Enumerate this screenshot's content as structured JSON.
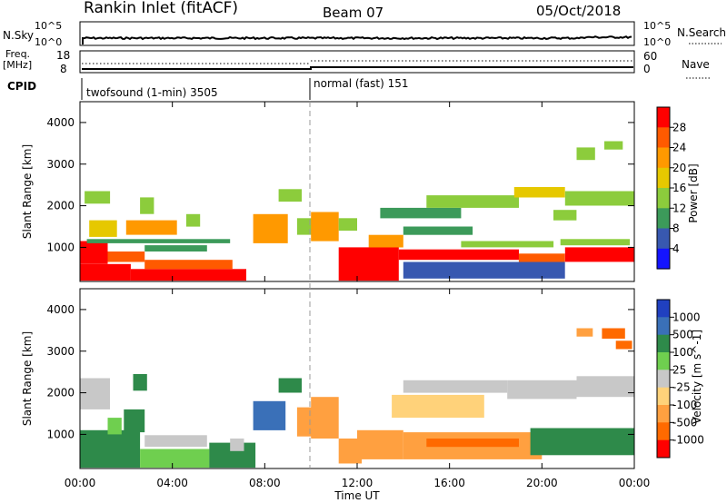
{
  "header": {
    "station": "Rankin Inlet (fitACF)",
    "beam": "Beam 07",
    "date": "05/Oct/2018"
  },
  "top_panels": {
    "nsky_label": "N.Sky",
    "nsky_ticks": [
      "10^5",
      "10^0"
    ],
    "nsearch_label": "N.Search",
    "nsearch_ticks": [
      "10^5",
      "10^0"
    ],
    "freq_label": "Freq.",
    "freq_unit": "[MHz]",
    "freq_ticks": [
      "18",
      "8"
    ],
    "nave_label": "Nave",
    "nave_ticks": [
      "60",
      "0"
    ],
    "cpid_label": "CPID",
    "cpid_segments": [
      {
        "label": "twofsound (1-min) 3505",
        "start_hour": 0,
        "end_hour": 10
      },
      {
        "label": "normal (fast) 151",
        "start_hour": 10,
        "end_hour": 24
      }
    ]
  },
  "chart_data": [
    {
      "type": "heatmap",
      "name": "power",
      "xlabel": "Time UT",
      "ylabel": "Slant Range [km]",
      "xlim": [
        0,
        24
      ],
      "ylim": [
        180,
        4500
      ],
      "x_ticks": [
        "00:00",
        "04:00",
        "08:00",
        "12:00",
        "16:00",
        "20:00",
        "00:00"
      ],
      "y_ticks": [
        1000,
        2000,
        3000,
        4000
      ],
      "colorbar": {
        "label": "Power [dB]",
        "ticks": [
          "28",
          "24",
          "20",
          "16",
          "12",
          "8",
          "4"
        ],
        "colors": [
          "#ff0000",
          "#ff5a00",
          "#ff9900",
          "#e6c800",
          "#8ccc3c",
          "#3c9a5a",
          "#3858b0",
          "#1414ff"
        ]
      }
    },
    {
      "type": "heatmap",
      "name": "velocity",
      "xlabel": "Time UT",
      "ylabel": "Slant Range [km]",
      "xlim": [
        0,
        24
      ],
      "ylim": [
        180,
        4500
      ],
      "x_ticks": [
        "00:00",
        "04:00",
        "08:00",
        "12:00",
        "16:00",
        "20:00",
        "00:00"
      ],
      "y_ticks": [
        1000,
        2000,
        3000,
        4000
      ],
      "colorbar": {
        "label": "Velocity [m s^-1]",
        "ticks": [
          "1000",
          "500",
          "100",
          "25",
          "-25",
          "-100",
          "-500",
          "-1000"
        ],
        "colors": [
          "#2040c0",
          "#3a70b8",
          "#2e8a4a",
          "#6fcf4f",
          "#c8c8c8",
          "#ffd27a",
          "#ffa040",
          "#ff6a00",
          "#ff0000"
        ]
      }
    }
  ]
}
